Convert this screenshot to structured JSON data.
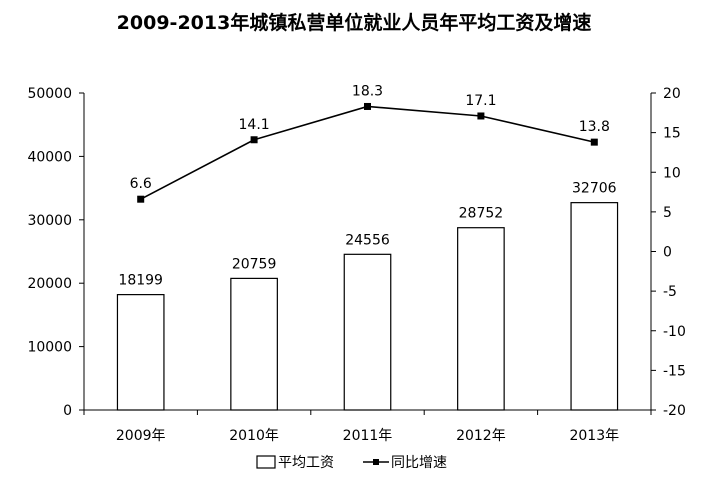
{
  "chart_data": {
    "type": "bar",
    "title": "2009-2013年城镇私营单位就业人员年平均工资及增速",
    "categories": [
      "2009年",
      "2010年",
      "2011年",
      "2012年",
      "2013年"
    ],
    "series": [
      {
        "name": "平均工资",
        "type": "bar",
        "axis": "left",
        "values": [
          18199,
          20759,
          24556,
          28752,
          32706
        ],
        "labels": [
          "18199",
          "20759",
          "24556",
          "28752",
          "32706"
        ]
      },
      {
        "name": "同比增速",
        "type": "line",
        "axis": "right",
        "values": [
          6.6,
          14.1,
          18.3,
          17.1,
          13.8
        ],
        "labels": [
          "6.6",
          "14.1",
          "18.3",
          "17.1",
          "13.8"
        ]
      }
    ],
    "y_left": {
      "min": 0,
      "max": 50000,
      "ticks": [
        0,
        10000,
        20000,
        30000,
        40000,
        50000
      ],
      "tick_labels": [
        "0",
        "10000",
        "20000",
        "30000",
        "40000",
        "50000"
      ]
    },
    "y_right": {
      "min": -20,
      "max": 20,
      "ticks": [
        -20,
        -15,
        -10,
        -5,
        0,
        5,
        10,
        15,
        20
      ],
      "tick_labels": [
        "-20",
        "-15",
        "-10",
        "-5",
        "0",
        "5",
        "10",
        "15",
        "20"
      ]
    },
    "legend_position": "bottom",
    "grid": false
  }
}
